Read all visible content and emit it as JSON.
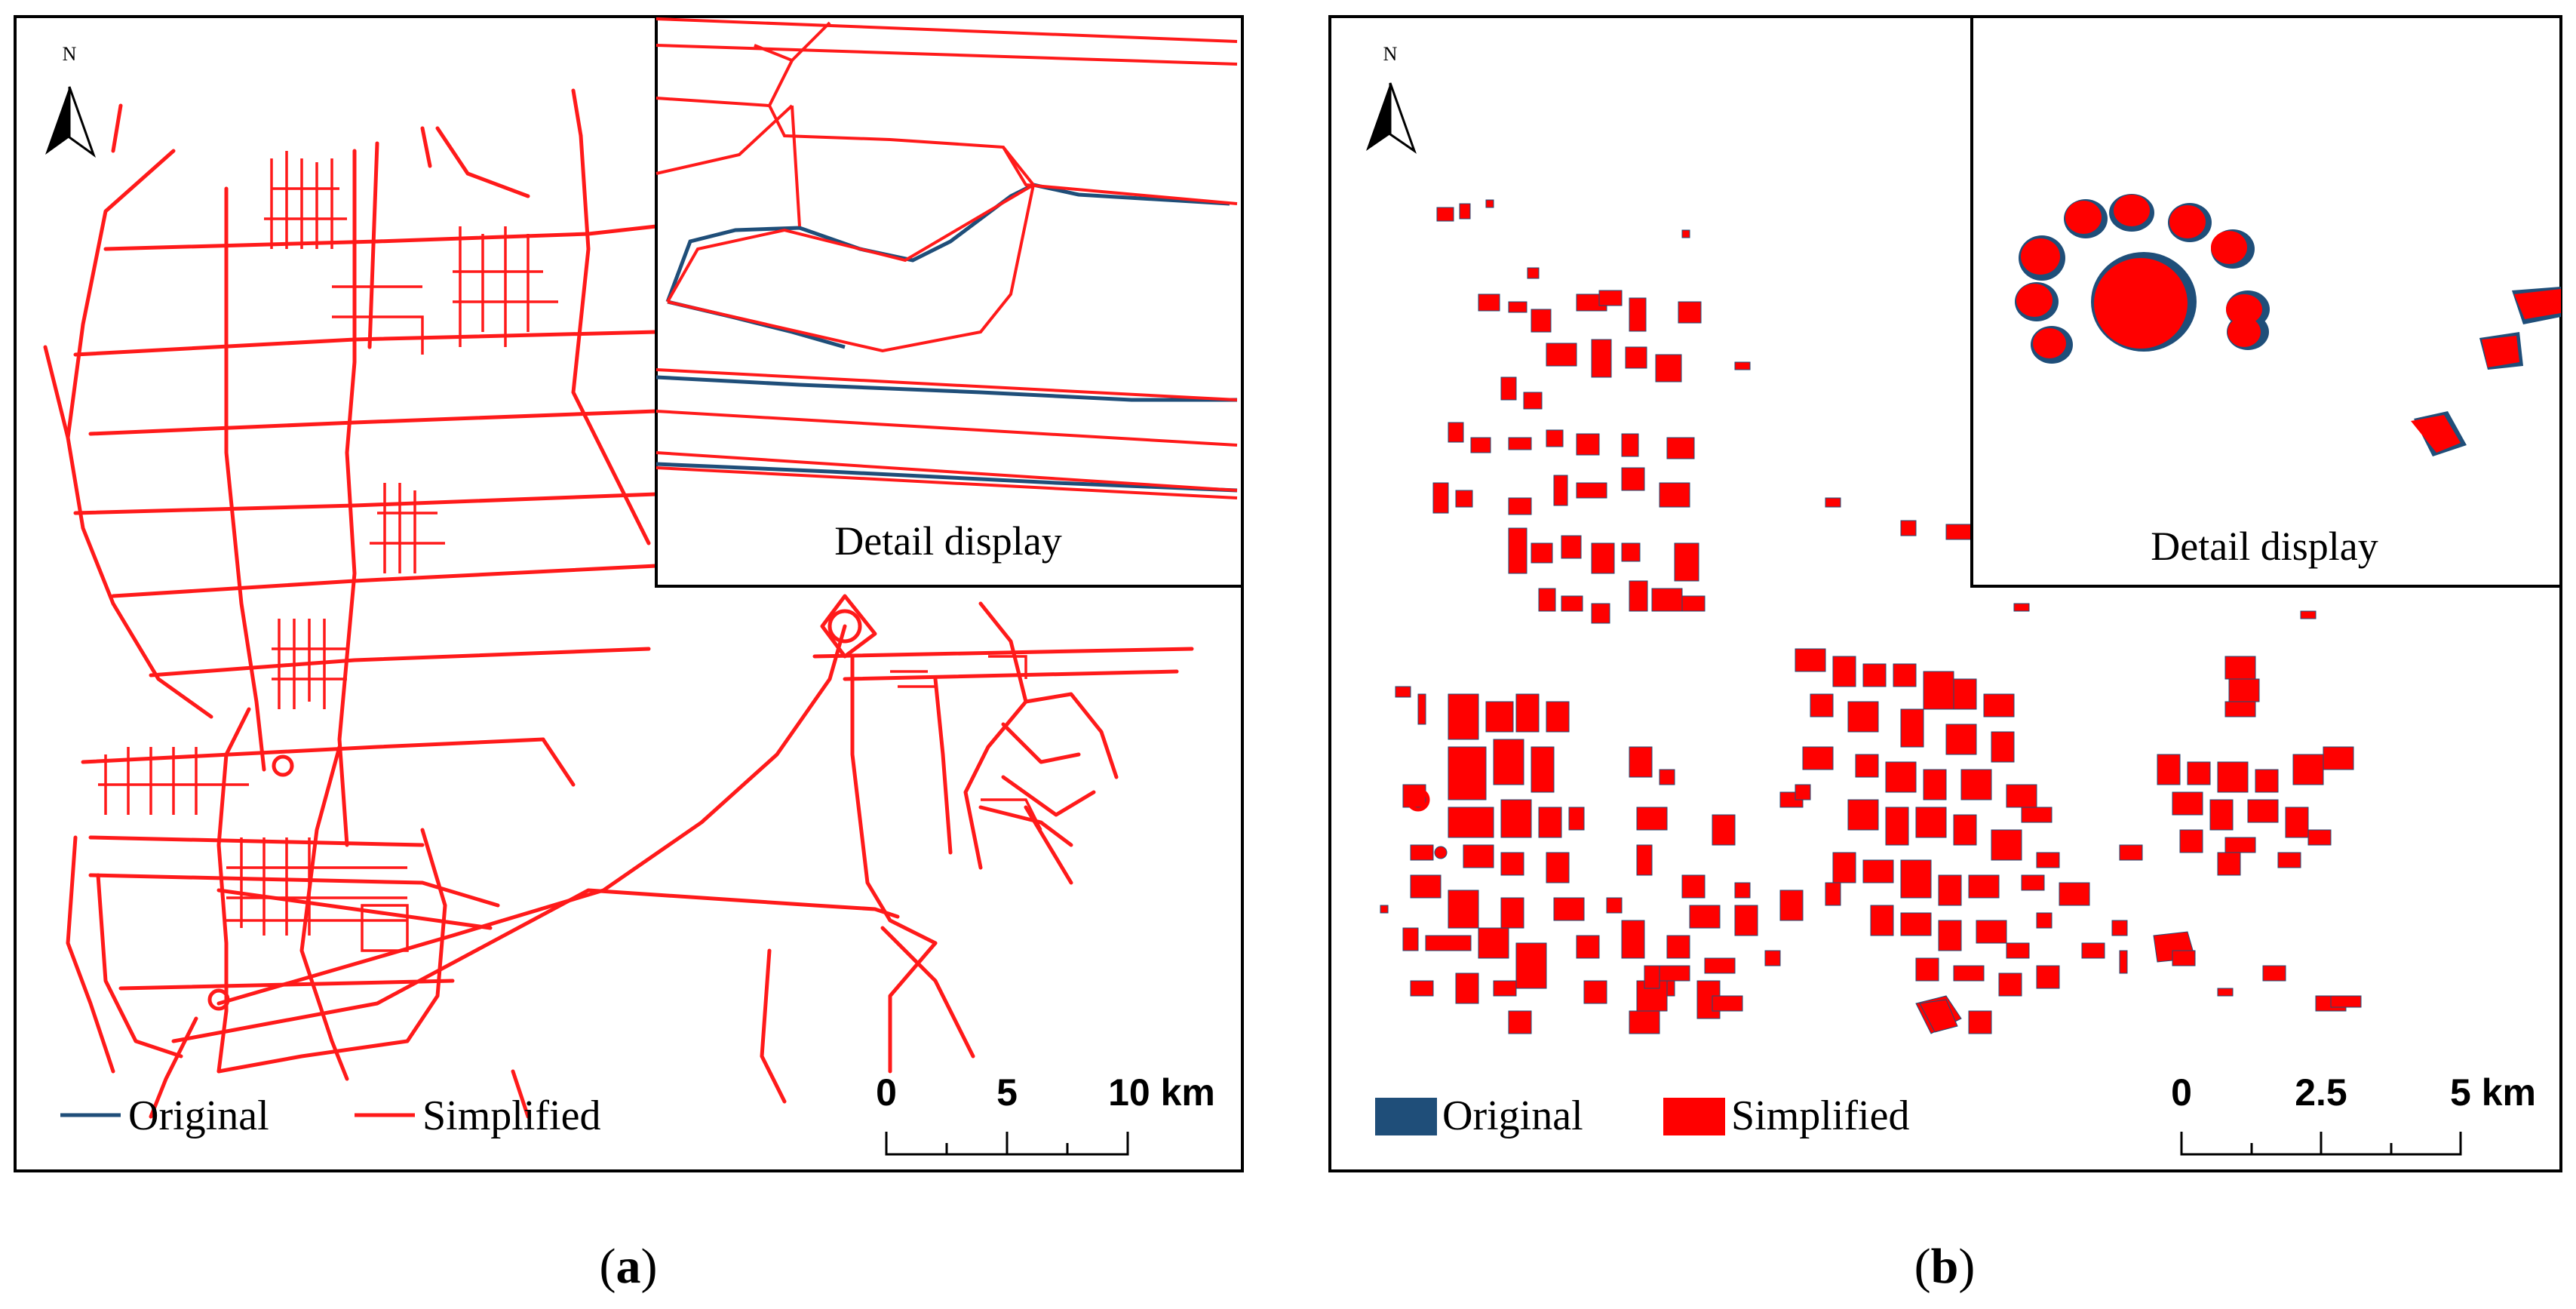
{
  "north_label": "N",
  "colors": {
    "original": "#1f4e79",
    "simplified": "#ff0000",
    "frame": "#000000",
    "background": "#ffffff"
  },
  "panel_a": {
    "caption_open": "(",
    "caption_letter": "a",
    "caption_close": ")",
    "inset_label": "Detail display",
    "legend": {
      "original": "Original",
      "simplified": "Simplified",
      "symbol": "line"
    },
    "scale": {
      "ticks": [
        "0",
        "5",
        "10 km"
      ]
    }
  },
  "panel_b": {
    "caption_open": "(",
    "caption_letter": "b",
    "caption_close": ")",
    "inset_label": "Detail display",
    "legend": {
      "original": "Original",
      "simplified": "Simplified",
      "symbol": "box"
    },
    "scale": {
      "ticks": [
        "0",
        "2.5",
        "5 km"
      ]
    }
  }
}
